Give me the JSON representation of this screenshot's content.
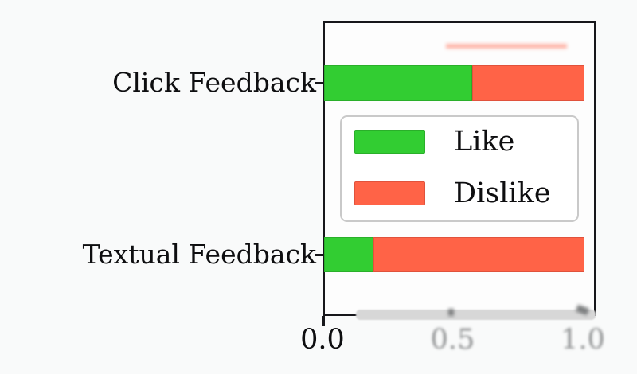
{
  "colors": {
    "like": "#32CD32",
    "dislike": "#FF6347",
    "background": "#f9fafa",
    "axis_border": "#17171b",
    "blur_band": "#d7d7d7",
    "blurred_tick_text": "#8f9192"
  },
  "chart_data": {
    "type": "bar",
    "orientation": "horizontal",
    "stacked": true,
    "title": "",
    "xlabel": "",
    "ylabel": "",
    "categories": [
      "Click Feedback",
      "Textual Feedback"
    ],
    "series": [
      {
        "name": "Like",
        "color": "#32CD32",
        "values": [
          0.57,
          0.19
        ]
      },
      {
        "name": "Dislike",
        "color": "#FF6347",
        "values": [
          0.43,
          0.81
        ]
      }
    ],
    "xlim": [
      0,
      1.045
    ],
    "xticks": [
      {
        "value": 0.0,
        "label": "0.0"
      },
      {
        "value": 0.5,
        "label": "0.5"
      },
      {
        "value": 1.0,
        "label": "1.0"
      }
    ],
    "grid": false,
    "legend": {
      "position": "center",
      "entries": [
        "Like",
        "Dislike"
      ]
    }
  }
}
